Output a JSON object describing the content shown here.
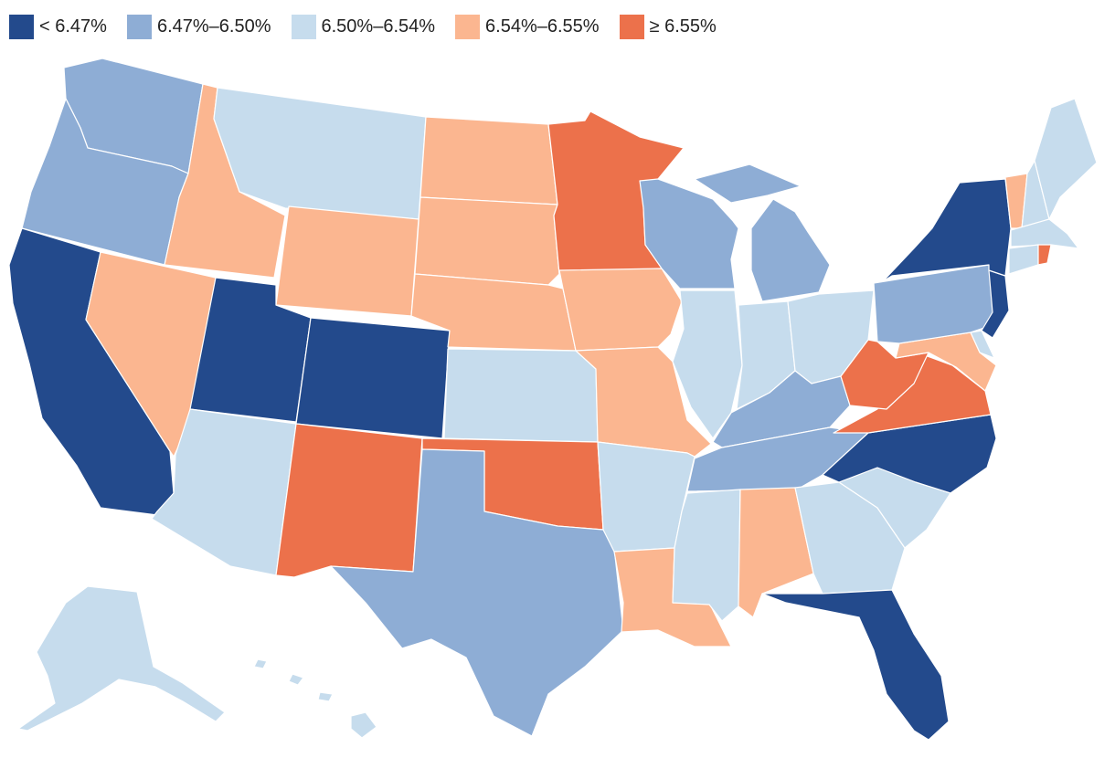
{
  "legend": [
    {
      "id": "c1",
      "label": "< 6.47%",
      "color": "#234a8c"
    },
    {
      "id": "c2",
      "label": "6.47%–6.50%",
      "color": "#8eadd5"
    },
    {
      "id": "c3",
      "label": "6.50%–6.54%",
      "color": "#c6dced"
    },
    {
      "id": "c4",
      "label": "6.54%–6.55%",
      "color": "#fbb690"
    },
    {
      "id": "c5",
      "label": "≥ 6.55%",
      "color": "#ec714b"
    }
  ],
  "states": [
    {
      "name": "Washington",
      "class": "c2"
    },
    {
      "name": "Oregon",
      "class": "c2"
    },
    {
      "name": "California",
      "class": "c1"
    },
    {
      "name": "Idaho",
      "class": "c4"
    },
    {
      "name": "Nevada",
      "class": "c4"
    },
    {
      "name": "Montana",
      "class": "c3"
    },
    {
      "name": "Wyoming",
      "class": "c4"
    },
    {
      "name": "Utah",
      "class": "c1"
    },
    {
      "name": "Colorado",
      "class": "c1"
    },
    {
      "name": "Arizona",
      "class": "c3"
    },
    {
      "name": "New Mexico",
      "class": "c5"
    },
    {
      "name": "North Dakota",
      "class": "c4"
    },
    {
      "name": "South Dakota",
      "class": "c4"
    },
    {
      "name": "Nebraska",
      "class": "c4"
    },
    {
      "name": "Kansas",
      "class": "c3"
    },
    {
      "name": "Oklahoma",
      "class": "c5"
    },
    {
      "name": "Texas",
      "class": "c2"
    },
    {
      "name": "Minnesota",
      "class": "c5"
    },
    {
      "name": "Iowa",
      "class": "c4"
    },
    {
      "name": "Missouri",
      "class": "c4"
    },
    {
      "name": "Arkansas",
      "class": "c3"
    },
    {
      "name": "Louisiana",
      "class": "c4"
    },
    {
      "name": "Wisconsin",
      "class": "c2"
    },
    {
      "name": "Illinois",
      "class": "c3"
    },
    {
      "name": "Michigan",
      "class": "c2"
    },
    {
      "name": "Indiana",
      "class": "c3"
    },
    {
      "name": "Ohio",
      "class": "c3"
    },
    {
      "name": "Kentucky",
      "class": "c2"
    },
    {
      "name": "Tennessee",
      "class": "c2"
    },
    {
      "name": "Mississippi",
      "class": "c3"
    },
    {
      "name": "Alabama",
      "class": "c4"
    },
    {
      "name": "Georgia",
      "class": "c3"
    },
    {
      "name": "Florida",
      "class": "c1"
    },
    {
      "name": "South Carolina",
      "class": "c3"
    },
    {
      "name": "North Carolina",
      "class": "c1"
    },
    {
      "name": "Virginia",
      "class": "c5"
    },
    {
      "name": "West Virginia",
      "class": "c5"
    },
    {
      "name": "Pennsylvania",
      "class": "c2"
    },
    {
      "name": "New York",
      "class": "c1"
    },
    {
      "name": "New Jersey",
      "class": "c1"
    },
    {
      "name": "Maryland",
      "class": "c4"
    },
    {
      "name": "Delaware",
      "class": "c3"
    },
    {
      "name": "Vermont",
      "class": "c4"
    },
    {
      "name": "New Hampshire",
      "class": "c3"
    },
    {
      "name": "Maine",
      "class": "c3"
    },
    {
      "name": "Massachusetts",
      "class": "c3"
    },
    {
      "name": "Connecticut",
      "class": "c3"
    },
    {
      "name": "Rhode Island",
      "class": "c5"
    },
    {
      "name": "Alaska",
      "class": "c3"
    },
    {
      "name": "Hawaii",
      "class": "c3"
    }
  ]
}
